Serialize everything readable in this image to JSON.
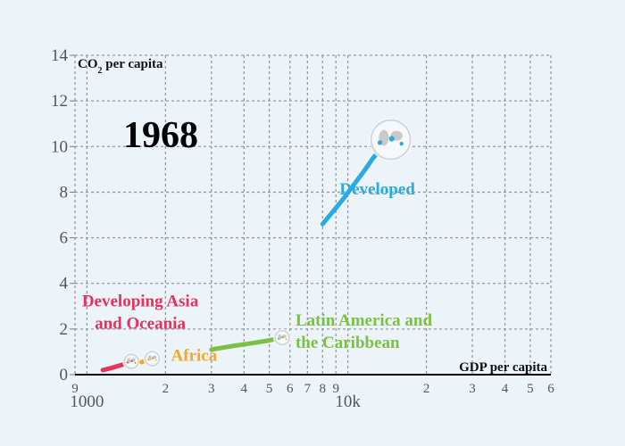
{
  "chart_data": {
    "type": "line",
    "year": "1968",
    "xlabel": "GDP per capita",
    "ylabel_main": "CO",
    "ylabel_sub": "2",
    "ylabel_rest": " per capita",
    "x_scale": "log",
    "xlim": [
      900,
      60000
    ],
    "ylim": [
      0,
      14
    ],
    "y_ticks": [
      0,
      2,
      4,
      6,
      8,
      10,
      12,
      14
    ],
    "x_ticks": [
      {
        "value": 900,
        "label": "9",
        "major": false
      },
      {
        "value": 1000,
        "label": "1000",
        "major": true
      },
      {
        "value": 2000,
        "label": "2",
        "major": false
      },
      {
        "value": 3000,
        "label": "3",
        "major": false
      },
      {
        "value": 4000,
        "label": "4",
        "major": false
      },
      {
        "value": 5000,
        "label": "5",
        "major": false
      },
      {
        "value": 6000,
        "label": "6",
        "major": false
      },
      {
        "value": 7000,
        "label": "7",
        "major": false
      },
      {
        "value": 8000,
        "label": "8",
        "major": false
      },
      {
        "value": 9000,
        "label": "9",
        "major": false
      },
      {
        "value": 10000,
        "label": "10k",
        "major": true
      },
      {
        "value": 20000,
        "label": "2",
        "major": false
      },
      {
        "value": 30000,
        "label": "3",
        "major": false
      },
      {
        "value": 40000,
        "label": "4",
        "major": false
      },
      {
        "value": 50000,
        "label": "5",
        "major": false
      },
      {
        "value": 60000,
        "label": "6",
        "major": false
      }
    ],
    "grid": true,
    "series": [
      {
        "name": "Developed",
        "label_lines": [
          "Developed"
        ],
        "color": "#29abe2",
        "x": [
          8000,
          8700,
          9600,
          10500,
          11500,
          12500,
          13700,
          14600
        ],
        "y": [
          6.6,
          7.1,
          7.7,
          8.3,
          8.9,
          9.5,
          10.0,
          10.3
        ],
        "label_at": {
          "x": 9300,
          "y": 7.9
        },
        "label_anchor": "start"
      },
      {
        "name": "Developing Asia and Oceania",
        "label_lines": [
          "Developing Asia",
          "and Oceania"
        ],
        "color": "#e8315b",
        "x": [
          1150,
          1250,
          1380,
          1480
        ],
        "y": [
          0.2,
          0.3,
          0.45,
          0.58
        ],
        "label_at": {
          "x": 1600,
          "y": 3.0
        },
        "label_anchor": "middle"
      },
      {
        "name": "Africa",
        "label_lines": [
          "Africa"
        ],
        "color": "#f5a623",
        "x": [
          1620,
          1690,
          1780
        ],
        "y": [
          0.55,
          0.62,
          0.7
        ],
        "label_at": {
          "x": 2100,
          "y": 0.6
        },
        "label_anchor": "start"
      },
      {
        "name": "Latin America and the Caribbean",
        "label_lines": [
          "Latin America and",
          "the Caribbean"
        ],
        "color": "#7ac143",
        "x": [
          3000,
          3600,
          4300,
          5000,
          5600
        ],
        "y": [
          1.1,
          1.25,
          1.38,
          1.5,
          1.62
        ],
        "label_at": {
          "x": 6300,
          "y": 2.15
        },
        "label_anchor": "start"
      }
    ]
  }
}
